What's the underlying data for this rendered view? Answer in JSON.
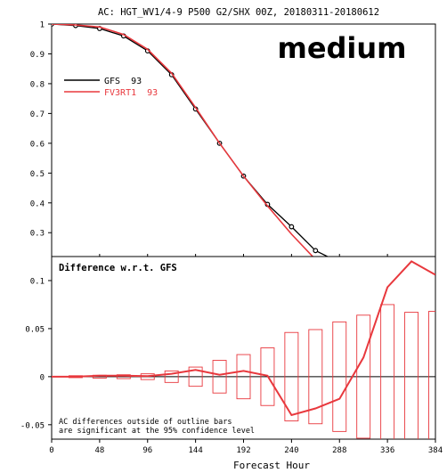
{
  "title": "AC: HGT_WV1/4-9 P500 G2/SHX 00Z, 20180311-20180612",
  "badge": "medium",
  "xlabel": "Forecast Hour",
  "colors": {
    "gfs": "#000000",
    "fv3": "#e8383d",
    "bars": "#e8383d"
  },
  "chart_data": [
    {
      "type": "line",
      "title": "AC: HGT_WV1/4-9 P500 G2/SHX 00Z, 20180311-20180612",
      "xlim": [
        0,
        384
      ],
      "ylim": [
        0.22,
        1.0
      ],
      "y_ticks": [
        {
          "value": 0.3,
          "label": "0.3"
        },
        {
          "value": 0.4,
          "label": "0.4"
        },
        {
          "value": 0.5,
          "label": "0.5"
        },
        {
          "value": 0.6,
          "label": "0.6"
        },
        {
          "value": 0.7,
          "label": "0.7"
        },
        {
          "value": 0.8,
          "label": "0.8"
        },
        {
          "value": 0.9,
          "label": "0.9"
        },
        {
          "value": 1.0,
          "label": "1"
        }
      ],
      "legend_position": "top-left",
      "series": [
        {
          "name": "GFS",
          "legend_label": "GFS  93",
          "color_key": "gfs",
          "markers": true,
          "x": [
            0,
            24,
            48,
            72,
            96,
            120,
            144,
            168,
            192,
            216,
            240,
            264,
            288
          ],
          "y": [
            1.0,
            0.995,
            0.985,
            0.96,
            0.91,
            0.83,
            0.715,
            0.6,
            0.49,
            0.395,
            0.32,
            0.24,
            0.2
          ]
        },
        {
          "name": "FV3RT1",
          "legend_label": "FV3RT1  93",
          "color_key": "fv3",
          "markers": false,
          "x": [
            0,
            24,
            48,
            72,
            96,
            120,
            144,
            168,
            192,
            216,
            240,
            264,
            288
          ],
          "y": [
            1.0,
            0.997,
            0.99,
            0.965,
            0.915,
            0.835,
            0.72,
            0.6,
            0.49,
            0.39,
            0.295,
            0.21,
            0.16
          ]
        }
      ]
    },
    {
      "type": "line",
      "title": "Difference w.r.t. GFS",
      "xlim": [
        0,
        384
      ],
      "ylim": [
        -0.065,
        0.125
      ],
      "y_ticks": [
        {
          "value": -0.05,
          "label": "-0.05"
        },
        {
          "value": 0,
          "label": "0"
        },
        {
          "value": 0.05,
          "label": "0.05"
        },
        {
          "value": 0.1,
          "label": "0.1"
        }
      ],
      "x_ticks": [
        0,
        48,
        96,
        144,
        192,
        240,
        288,
        336,
        384
      ],
      "series": [
        {
          "name": "FV3RT1",
          "color_key": "fv3",
          "x": [
            0,
            24,
            48,
            72,
            96,
            120,
            144,
            168,
            192,
            216,
            240,
            264,
            288,
            312,
            336,
            360,
            384
          ],
          "y": [
            0,
            0,
            0.001,
            0.001,
            0.0005,
            0.003,
            0.007,
            0.002,
            0.006,
            0.001,
            -0.04,
            -0.033,
            -0.023,
            0.02,
            0.093,
            0.12,
            0.106
          ]
        }
      ],
      "significance_bars": {
        "x": [
          24,
          48,
          72,
          96,
          120,
          144,
          168,
          192,
          216,
          240,
          264,
          288,
          312,
          336,
          360,
          384
        ],
        "half_width": [
          0.001,
          0.0015,
          0.002,
          0.003,
          0.006,
          0.01,
          0.017,
          0.023,
          0.03,
          0.046,
          0.049,
          0.057,
          0.064,
          0.075,
          0.067,
          0.068
        ]
      },
      "annotation": [
        "AC differences outside of outline bars",
        "are significant at the 95% confidence level"
      ]
    }
  ]
}
